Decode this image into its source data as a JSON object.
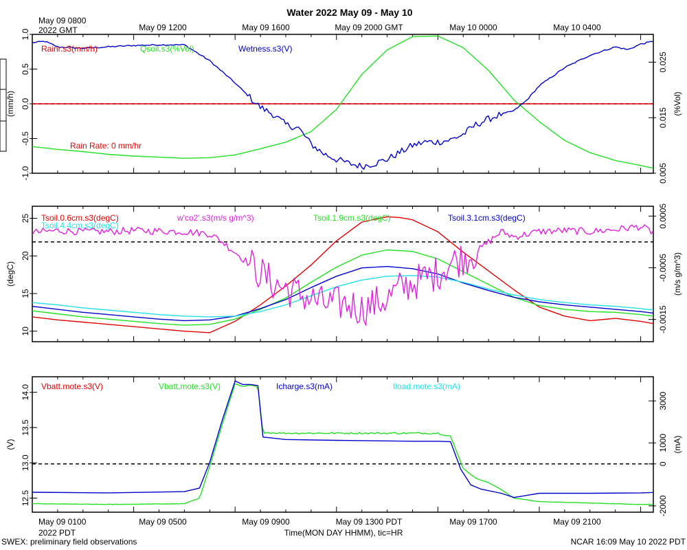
{
  "header": {
    "title": "Water 2022 May 09 - May 10",
    "top_left_line1": "May 09 0800",
    "top_left_line2": "2022 GMT",
    "top_ticks": [
      "May 09 1200",
      "May 09 1600",
      "May 09 2000 GMT",
      "May 10 0000",
      "May 10 0400"
    ],
    "bottom_left_line1": "May 09 0100",
    "bottom_left_line2": "2022 PDT",
    "bottom_ticks": [
      "May 09 0500",
      "May 09 0900",
      "May 09 1300 PDT",
      "May 09 1700",
      "May 09 2100"
    ],
    "xlabel": "Time(MON DAY HHMM), tic=HR"
  },
  "footer": {
    "left": "SWEX: preliminary field observations",
    "right": "NCAR 16:09 May 10 2022 PDT"
  },
  "colors": {
    "red": "#e00000",
    "green": "#22e022",
    "blue": "#0000cc",
    "cyan": "#22e0e8",
    "magenta": "#e020e0"
  },
  "chart_data": [
    {
      "type": "line",
      "title": "Water 2022 May 09 - May 10",
      "x_unit": "hours since May 09 0100 PDT",
      "xlim": [
        0,
        24.5
      ],
      "ylabel_left": "(mm/h)",
      "ylabel_right": "(%Vol)",
      "ylim_left": [
        -1.0,
        1.0
      ],
      "ylim_right": [
        0.005,
        0.03
      ],
      "yticks_left": [
        "1.0",
        "0.5",
        "0.0",
        "-0.5",
        "-1.0"
      ],
      "yticks_right": [
        "0.025",
        "0.015",
        "0.005"
      ],
      "annotation": "Rain Rate: 0 mm/hr",
      "series": [
        {
          "name": "Rainr.s3(mm/h)",
          "axis": "left",
          "color": "red",
          "x": [
            0,
            24.5
          ],
          "y": [
            0,
            0
          ]
        },
        {
          "name": "Qsoil.s3(%Vol)",
          "axis": "right",
          "color": "green",
          "x": [
            0,
            1,
            2,
            3,
            4,
            5,
            6,
            7,
            8,
            9,
            10,
            11,
            12,
            13,
            14,
            15,
            16,
            17,
            18,
            19,
            20,
            21,
            22,
            23,
            24,
            24.5
          ],
          "y": [
            0.0098,
            0.0093,
            0.0089,
            0.0084,
            0.0081,
            0.0079,
            0.0077,
            0.0078,
            0.0083,
            0.0094,
            0.0106,
            0.0125,
            0.0165,
            0.0228,
            0.0272,
            0.0296,
            0.0297,
            0.0276,
            0.0235,
            0.0182,
            0.0143,
            0.0109,
            0.0087,
            0.0073,
            0.0064,
            0.0059
          ]
        },
        {
          "name": "Wetness.s3(V)",
          "axis": "left",
          "color": "blue",
          "x": [
            0,
            0.5,
            1,
            2,
            3,
            4,
            5,
            6,
            7,
            8,
            8.7,
            9,
            9.5,
            10,
            10.5,
            11,
            11.5,
            12,
            12.5,
            13,
            13.5,
            14,
            14.5,
            15,
            15.5,
            16,
            16.5,
            17,
            17.5,
            18,
            18.5,
            19,
            19.5,
            20,
            21,
            22,
            23,
            23.5,
            24,
            24.5
          ],
          "y": [
            0.88,
            0.9,
            0.82,
            0.8,
            0.82,
            0.84,
            0.85,
            0.85,
            0.62,
            0.3,
            0.05,
            -0.05,
            -0.15,
            -0.3,
            -0.35,
            -0.58,
            -0.72,
            -0.8,
            -0.86,
            -0.9,
            -0.86,
            -0.8,
            -0.7,
            -0.6,
            -0.55,
            -0.55,
            -0.52,
            -0.44,
            -0.3,
            -0.22,
            -0.15,
            -0.1,
            0.05,
            0.26,
            0.52,
            0.7,
            0.82,
            0.78,
            0.86,
            0.9
          ],
          "noise_amplitude": 0.05,
          "noise_range": [
            8.5,
            18.5
          ]
        }
      ]
    },
    {
      "type": "line",
      "x_unit": "hours since May 09 0100 PDT",
      "xlim": [
        0,
        24.5
      ],
      "ylabel_left": "(degC)",
      "ylabel_right": "(m/s g/m^3)",
      "ylim_left": [
        8.6,
        26.6
      ],
      "ylim_right": [
        -0.00193,
        0.00069
      ],
      "yticks_left": [
        "25",
        "20",
        "15",
        "10"
      ],
      "yticks_right": [
        "0.0005",
        "-0.0005",
        "-0.0015"
      ],
      "reference_line_right": 0,
      "series": [
        {
          "name": "Tsoil.0.6cm.s3(degC)",
          "axis": "left",
          "color": "red",
          "x": [
            0,
            1,
            2,
            3,
            4,
            5,
            6,
            7,
            8,
            9,
            10,
            11,
            12,
            13,
            14,
            14.5,
            15,
            16,
            17,
            18,
            19,
            20,
            21,
            22,
            23,
            24,
            24.5
          ],
          "y": [
            11.9,
            11.5,
            11.2,
            10.9,
            10.6,
            10.3,
            10.0,
            9.8,
            11.3,
            13.5,
            16.0,
            18.8,
            22.0,
            24.5,
            25.2,
            25.1,
            24.8,
            23.2,
            20.5,
            18.0,
            15.5,
            13.2,
            12.0,
            11.4,
            11.7,
            11.3,
            11.0
          ]
        },
        {
          "name": "Tsoil.1.9cm.s3(degC)",
          "axis": "left",
          "color": "green",
          "x": [
            0,
            1,
            2,
            3,
            4,
            5,
            6,
            7,
            8,
            9,
            10,
            11,
            12,
            13,
            14,
            15,
            16,
            17,
            18,
            19,
            20,
            21,
            22,
            23,
            24,
            24.5
          ],
          "y": [
            12.7,
            12.3,
            11.9,
            11.6,
            11.3,
            11.0,
            10.8,
            10.9,
            11.6,
            12.9,
            14.4,
            16.5,
            18.5,
            20.1,
            20.8,
            20.6,
            19.6,
            17.9,
            16.2,
            14.5,
            13.4,
            12.9,
            12.6,
            12.5,
            12.2,
            12.0
          ]
        },
        {
          "name": "Tsoil.3.1cm.s3(degC)",
          "axis": "left",
          "color": "blue",
          "x": [
            0,
            1,
            2,
            3,
            4,
            5,
            6,
            7,
            8,
            9,
            10,
            11,
            12,
            13,
            14,
            15,
            16,
            17,
            18,
            19,
            20,
            21,
            22,
            23,
            24,
            24.5
          ],
          "y": [
            13.3,
            12.9,
            12.5,
            12.2,
            11.9,
            11.6,
            11.4,
            11.5,
            12.0,
            13.0,
            14.2,
            15.8,
            17.3,
            18.4,
            18.6,
            18.3,
            17.6,
            16.4,
            15.4,
            14.5,
            13.9,
            13.5,
            13.2,
            12.9,
            12.6,
            12.4
          ]
        },
        {
          "name": "Tsoil.4.4cm.s3(degC)",
          "axis": "left",
          "color": "cyan",
          "x": [
            0,
            1,
            2,
            3,
            4,
            5,
            6,
            7,
            8,
            9,
            10,
            11,
            12,
            13,
            14,
            15,
            16,
            17,
            18,
            19,
            20,
            21,
            22,
            23,
            24,
            24.5
          ],
          "y": [
            13.8,
            13.5,
            13.1,
            12.8,
            12.5,
            12.2,
            12.0,
            11.9,
            12.0,
            12.6,
            13.5,
            14.7,
            15.9,
            16.8,
            17.3,
            17.4,
            17.2,
            16.5,
            15.6,
            14.8,
            14.2,
            13.8,
            13.5,
            13.3,
            13.0,
            12.8
          ]
        },
        {
          "name": "w'co2'.s3(m/s g/m^3)",
          "axis": "right",
          "color": "magenta",
          "x": [
            0,
            1,
            2,
            3,
            4,
            5,
            6,
            7,
            7.5,
            8,
            8.5,
            9,
            9.5,
            10,
            10.5,
            11,
            11.5,
            12,
            12.5,
            13,
            13.5,
            14,
            14.5,
            15,
            15.5,
            16,
            16.5,
            17,
            17.5,
            18,
            18.5,
            19,
            20,
            21,
            22,
            23,
            24,
            24.5
          ],
          "y": [
            0.00018,
            0.00022,
            0.0002,
            0.0002,
            0.00022,
            0.00021,
            0.0002,
            0.00016,
            0.0,
            -0.0002,
            -0.0004,
            -0.0006,
            -0.0008,
            -0.0009,
            -0.001,
            -0.0011,
            -0.0012,
            -0.0012,
            -0.0012,
            -0.0013,
            -0.0012,
            -0.0011,
            -0.0009,
            -0.0008,
            -0.0007,
            -0.0006,
            -0.0004,
            -0.0003,
            -0.0002,
            0.0,
            0.0002,
            0.0001,
            0.0002,
            0.00022,
            0.0002,
            0.00024,
            0.0003,
            0.00018
          ],
          "noise_amplitude": 0.00035,
          "noise_range": [
            8.5,
            17.5
          ]
        }
      ]
    },
    {
      "type": "line",
      "x_unit": "hours since May 09 0100 PDT",
      "xlim": [
        0,
        24.5
      ],
      "ylabel_left": "(V)",
      "ylabel_right": "(mA)",
      "ylim_left": [
        12.3,
        14.22
      ],
      "ylim_right": [
        -2300,
        4150
      ],
      "yticks_left": [
        "14.0",
        "13.5",
        "13.0",
        "12.5"
      ],
      "yticks_right": [
        "3000",
        "1000",
        "0",
        "-2000"
      ],
      "reference_line_right": 0,
      "series": [
        {
          "name": "Vbatt.mote.s3(V)",
          "axis": "left",
          "color": "red",
          "x": [
            0,
            24.5
          ],
          "y": [
            null,
            null
          ]
        },
        {
          "name": "Vbatt.mote.s3(V)",
          "axis": "left",
          "color": "green",
          "x": [
            0,
            3,
            6,
            6.6,
            7,
            7.5,
            8,
            8.3,
            8.6,
            8.9,
            9.1,
            10,
            12,
            15,
            16,
            16.5,
            17,
            17.5,
            18,
            18.5,
            19,
            20,
            22,
            24,
            24.5
          ],
          "y": [
            12.42,
            12.41,
            12.42,
            12.5,
            12.95,
            13.55,
            14.12,
            14.08,
            14.1,
            14.08,
            13.43,
            13.42,
            13.42,
            13.42,
            13.42,
            13.38,
            12.92,
            12.78,
            12.72,
            12.62,
            12.5,
            12.45,
            12.43,
            12.41,
            12.41
          ],
          "noise_amplitude": 0.012,
          "noise_range": [
            9.1,
            16.4
          ]
        },
        {
          "name": "Icharge.s3(mA)",
          "axis": "right",
          "color": "blue",
          "x": [
            0,
            3,
            6,
            6.6,
            7,
            7.5,
            8,
            8.3,
            8.6,
            8.9,
            9.1,
            10,
            12,
            15,
            16,
            16.5,
            16.9,
            17.3,
            17.7,
            18.5,
            19,
            19.5,
            20,
            22,
            24,
            24.5
          ],
          "y": [
            -1350,
            -1380,
            -1320,
            -1150,
            80,
            2100,
            3950,
            3780,
            3780,
            3730,
            1280,
            1160,
            1120,
            1080,
            1080,
            1060,
            -250,
            -1000,
            -1200,
            -1400,
            -1600,
            -1500,
            -1400,
            -1400,
            -1380,
            -1360
          ]
        },
        {
          "name": "Iload.mote.s3(mA)",
          "axis": "right",
          "color": "cyan",
          "x": [
            0,
            24.5
          ],
          "y": [
            null,
            null
          ]
        }
      ]
    }
  ]
}
